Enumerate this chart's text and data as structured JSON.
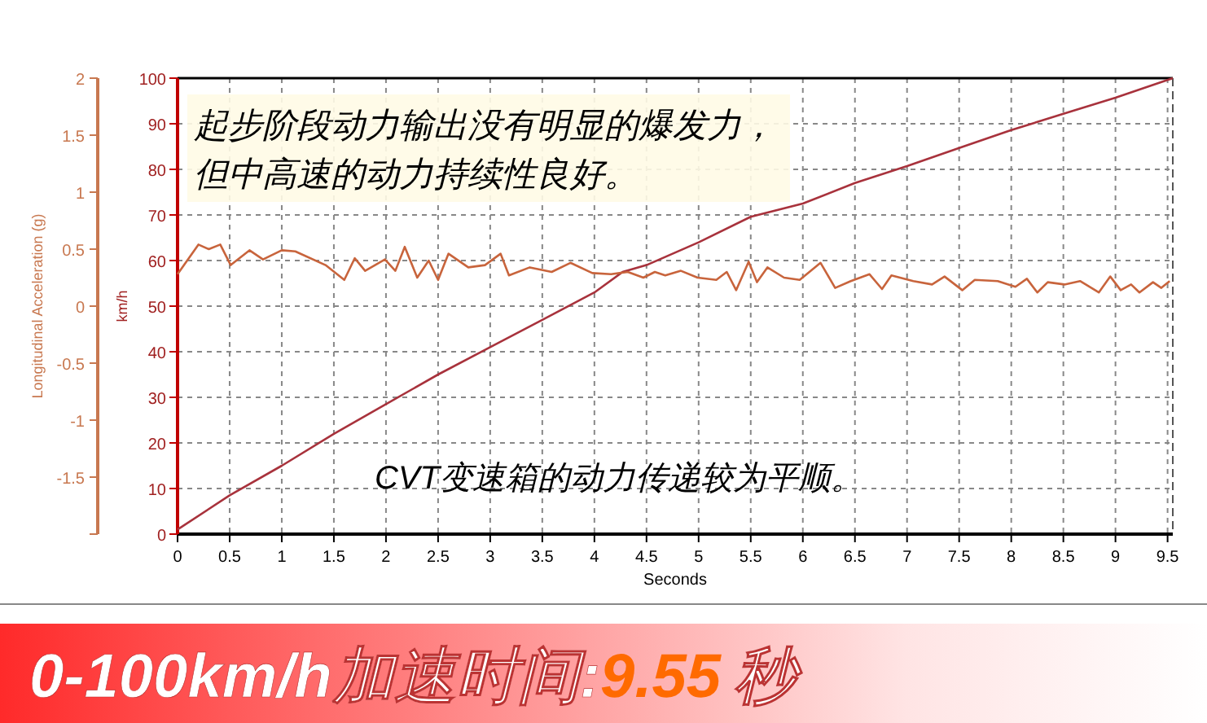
{
  "chart_data": {
    "type": "line",
    "xlabel": "Seconds",
    "ylabel": "km/h",
    "y2label": "Longitudinal Acceleration (g)",
    "xlim": [
      0,
      9.55
    ],
    "xticks": [
      0,
      0.5,
      1,
      1.5,
      2,
      2.5,
      3,
      3.5,
      4,
      4.5,
      5,
      5.5,
      6,
      6.5,
      7,
      7.5,
      8,
      8.5,
      9,
      9.5
    ],
    "ylim": [
      0,
      100
    ],
    "yticks": [
      0,
      10,
      20,
      30,
      40,
      50,
      60,
      70,
      80,
      90,
      100
    ],
    "y2lim": [
      -2,
      2
    ],
    "y2ticks": [
      {
        "value": -2,
        "label": null
      },
      -1.5,
      -1,
      -0.5,
      0,
      0.5,
      1,
      1.5,
      2
    ],
    "grid": true,
    "marker": "none",
    "line_style": "solid",
    "series": [
      {
        "color": "#a8323c",
        "x": [
          0,
          0.5,
          1,
          1.5,
          2,
          2.5,
          3,
          3.5,
          4,
          4.27,
          4.5,
          5,
          5.5,
          6,
          6.5,
          7,
          7.5,
          8,
          8.5,
          9,
          9.55
        ],
        "values": [
          1,
          8.5,
          15,
          22,
          28.5,
          35,
          41,
          47,
          53,
          57.5,
          59,
          64,
          69.6,
          72.5,
          77,
          80.7,
          84.7,
          88.6,
          92.2,
          95.7,
          100
        ]
      },
      {
        "color": "#c8643c",
        "axis": "y2",
        "x": [
          0,
          0.2,
          0.3,
          0.41,
          0.51,
          0.69,
          0.82,
          1.0,
          1.13,
          1.42,
          1.6,
          1.7,
          1.8,
          1.99,
          2.09,
          2.18,
          2.3,
          2.41,
          2.5,
          2.6,
          2.79,
          2.95,
          3.1,
          3.18,
          3.38,
          3.59,
          3.77,
          3.98,
          4.16,
          4.32,
          4.47,
          4.58,
          4.68,
          4.83,
          4.99,
          5.17,
          5.27,
          5.36,
          5.48,
          5.56,
          5.66,
          5.82,
          5.97,
          6.17,
          6.31,
          6.46,
          6.64,
          6.76,
          6.85,
          7.06,
          7.24,
          7.36,
          7.53,
          7.65,
          7.87,
          8.04,
          8.15,
          8.25,
          8.35,
          8.51,
          8.66,
          8.84,
          8.95,
          9.05,
          9.15,
          9.23,
          9.36,
          9.44,
          9.52
        ],
        "values": [
          0.28,
          0.54,
          0.5,
          0.54,
          0.36,
          0.49,
          0.41,
          0.49,
          0.48,
          0.36,
          0.23,
          0.42,
          0.31,
          0.41,
          0.31,
          0.52,
          0.25,
          0.4,
          0.23,
          0.46,
          0.34,
          0.36,
          0.46,
          0.27,
          0.34,
          0.3,
          0.38,
          0.29,
          0.28,
          0.3,
          0.25,
          0.3,
          0.27,
          0.31,
          0.25,
          0.23,
          0.3,
          0.14,
          0.39,
          0.21,
          0.34,
          0.25,
          0.23,
          0.38,
          0.16,
          0.22,
          0.28,
          0.15,
          0.27,
          0.22,
          0.19,
          0.26,
          0.14,
          0.23,
          0.22,
          0.17,
          0.24,
          0.12,
          0.21,
          0.19,
          0.22,
          0.12,
          0.26,
          0.14,
          0.19,
          0.12,
          0.21,
          0.16,
          0.22
        ]
      }
    ],
    "annotations": [
      "起步阶段动力输出没有明显的爆发力，",
      "但中高速的动力持续性良好。",
      "CVT变速箱的动力传递较为平顺。",
      "0-100km/h加速时间:9.55秒"
    ]
  }
}
